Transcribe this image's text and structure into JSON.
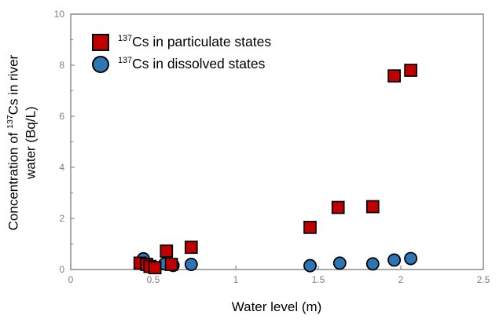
{
  "axes": {
    "x_title": "Water level (m)",
    "y_title": {
      "line1_pre": "Concentration of ",
      "isotope": "137",
      "line1_post": "Cs in river",
      "line2": "water (Bq/L)"
    }
  },
  "legend": {
    "items": [
      {
        "isotope": "137",
        "text": "Cs in particulate states"
      },
      {
        "isotope": "137",
        "text": "Cs in dissolved states"
      }
    ]
  },
  "chart_data": {
    "type": "scatter",
    "title": "",
    "xlabel": "Water level (m)",
    "ylabel": "Concentration of 137Cs in river water (Bq/L)",
    "xlim": [
      0,
      2.5
    ],
    "ylim": [
      0,
      10
    ],
    "x_ticks": [
      0,
      0.5,
      1,
      1.5,
      2,
      2.5
    ],
    "x_tick_labels": [
      "0",
      "0.5",
      "1",
      "1.5",
      "2",
      "2.5"
    ],
    "y_ticks": [
      0,
      2,
      4,
      6,
      8,
      10
    ],
    "y_tick_labels": [
      "0",
      "2",
      "4",
      "6",
      "8",
      "10"
    ],
    "y_minor_ticks": [
      1,
      3,
      5,
      7,
      9
    ],
    "grid": false,
    "legend_position": "upper left inside",
    "frame_color": "#8C8C8C",
    "tick_label_color": "#7F7F7F",
    "series": [
      {
        "name": "137Cs in particulate states",
        "marker": "square",
        "color": "#C00000",
        "edge_color": "#000000",
        "points": [
          [
            0.42,
            0.25
          ],
          [
            0.46,
            0.2
          ],
          [
            0.48,
            0.12
          ],
          [
            0.51,
            0.07
          ],
          [
            0.58,
            0.72
          ],
          [
            0.61,
            0.2
          ],
          [
            0.73,
            0.87
          ],
          [
            1.45,
            1.65
          ],
          [
            1.62,
            2.43
          ],
          [
            1.83,
            2.46
          ],
          [
            1.96,
            7.58
          ],
          [
            2.06,
            7.8
          ]
        ]
      },
      {
        "name": "137Cs in dissolved states",
        "marker": "circle",
        "color": "#2E75B6",
        "edge_color": "#000000",
        "points": [
          [
            0.44,
            0.42
          ],
          [
            0.57,
            0.22
          ],
          [
            0.62,
            0.16
          ],
          [
            0.73,
            0.2
          ],
          [
            1.45,
            0.15
          ],
          [
            1.63,
            0.25
          ],
          [
            1.83,
            0.22
          ],
          [
            1.96,
            0.37
          ],
          [
            2.06,
            0.43
          ]
        ]
      }
    ]
  }
}
